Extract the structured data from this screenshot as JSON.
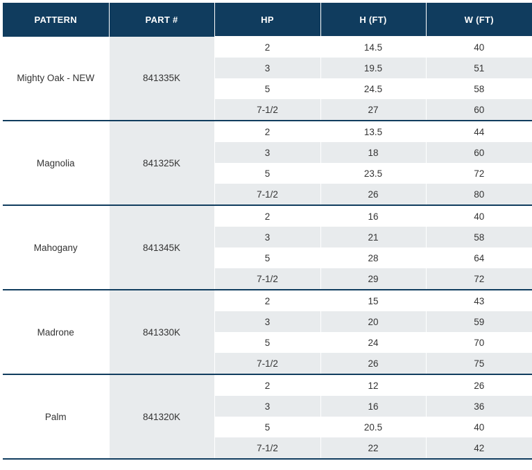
{
  "header": {
    "pattern": "PATTERN",
    "part": "PART #",
    "hp": "HP",
    "h_ft": "H (FT)",
    "w_ft": "W (FT)"
  },
  "groups": [
    {
      "pattern": "Mighty Oak - NEW",
      "part": "841335K",
      "rows": [
        {
          "hp": "2",
          "h": "14.5",
          "w": "40"
        },
        {
          "hp": "3",
          "h": "19.5",
          "w": "51"
        },
        {
          "hp": "5",
          "h": "24.5",
          "w": "58"
        },
        {
          "hp": "7-1/2",
          "h": "27",
          "w": "60"
        }
      ]
    },
    {
      "pattern": "Magnolia",
      "part": "841325K",
      "rows": [
        {
          "hp": "2",
          "h": "13.5",
          "w": "44"
        },
        {
          "hp": "3",
          "h": "18",
          "w": "60"
        },
        {
          "hp": "5",
          "h": "23.5",
          "w": "72"
        },
        {
          "hp": "7-1/2",
          "h": "26",
          "w": "80"
        }
      ]
    },
    {
      "pattern": "Mahogany",
      "part": "841345K",
      "rows": [
        {
          "hp": "2",
          "h": "16",
          "w": "40"
        },
        {
          "hp": "3",
          "h": "21",
          "w": "58"
        },
        {
          "hp": "5",
          "h": "28",
          "w": "64"
        },
        {
          "hp": "7-1/2",
          "h": "29",
          "w": "72"
        }
      ]
    },
    {
      "pattern": "Madrone",
      "part": "841330K",
      "rows": [
        {
          "hp": "2",
          "h": "15",
          "w": "43"
        },
        {
          "hp": "3",
          "h": "20",
          "w": "59"
        },
        {
          "hp": "5",
          "h": "24",
          "w": "70"
        },
        {
          "hp": "7-1/2",
          "h": "26",
          "w": "75"
        }
      ]
    },
    {
      "pattern": "Palm",
      "part": "841320K",
      "rows": [
        {
          "hp": "2",
          "h": "12",
          "w": "26"
        },
        {
          "hp": "3",
          "h": "16",
          "w": "36"
        },
        {
          "hp": "5",
          "h": "20.5",
          "w": "40"
        },
        {
          "hp": "7-1/2",
          "h": "22",
          "w": "42"
        }
      ]
    }
  ],
  "colors": {
    "header_bg": "#103c5e",
    "header_text": "#ffffff",
    "stripe": "#e8ebed"
  }
}
